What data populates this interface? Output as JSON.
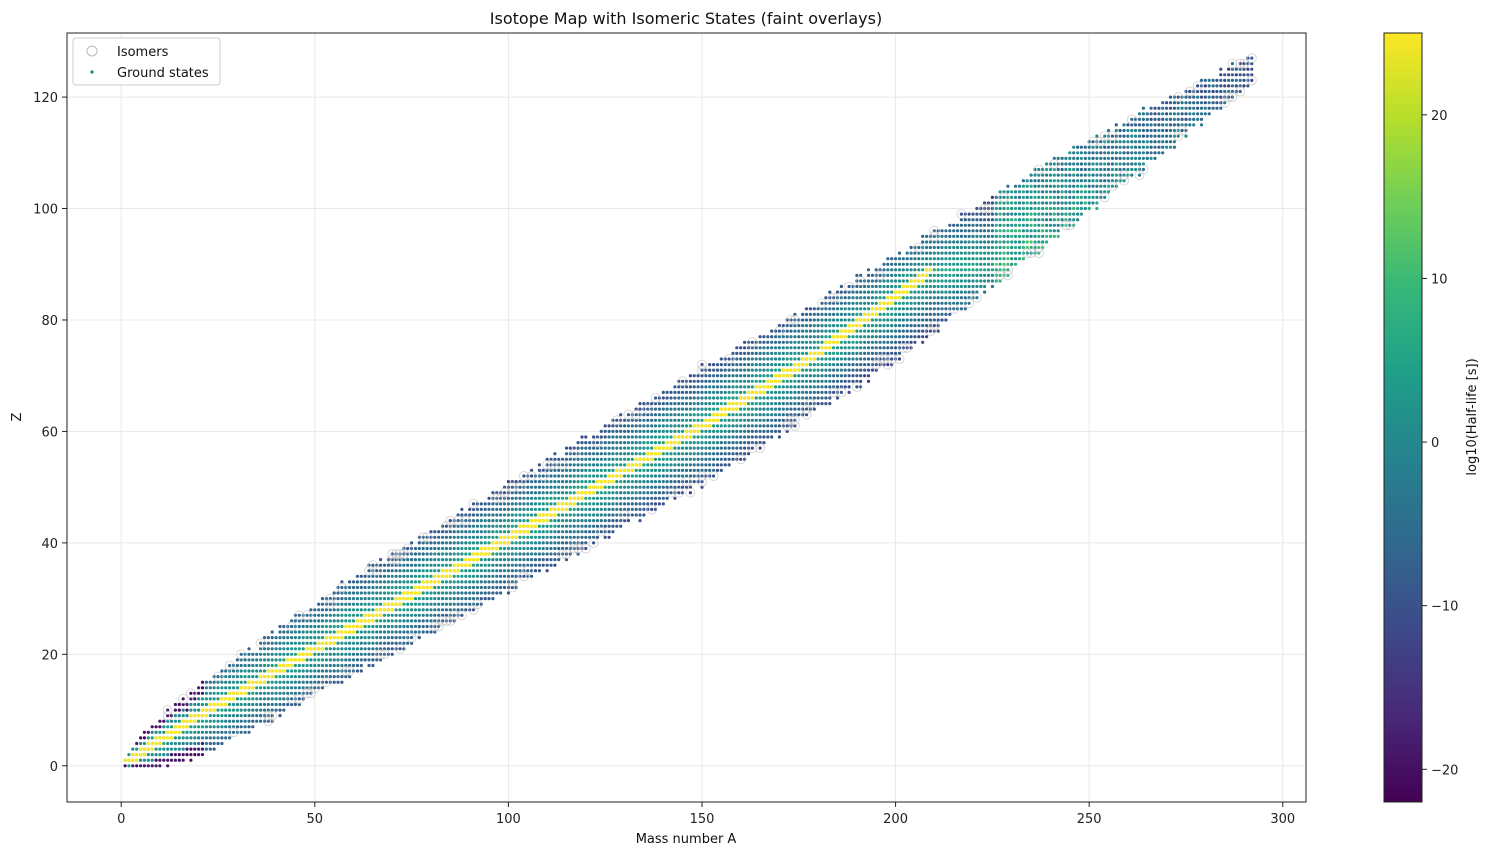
{
  "chart_data": {
    "type": "scatter",
    "title": "Isotope Map with Isomeric States (faint overlays)",
    "xlabel": "Mass number A",
    "ylabel": "Z",
    "xlim": [
      -14,
      306
    ],
    "ylim": [
      -6.5,
      131.5
    ],
    "x_ticks": [
      0,
      50,
      100,
      150,
      200,
      250,
      300
    ],
    "y_ticks": [
      0,
      20,
      40,
      60,
      80,
      100,
      120
    ],
    "grid": true,
    "legend_position": "upper-left",
    "colorbar": {
      "label": "log10(Half-life [s])",
      "min": -22,
      "max": 25,
      "ticks": [
        -20,
        -10,
        0,
        10,
        20
      ],
      "tick_labels": [
        "−20",
        "−10",
        "0",
        "10",
        "20"
      ],
      "colormap": "viridis",
      "colors": [
        "#440154",
        "#482878",
        "#3e4989",
        "#31688e",
        "#26828e",
        "#1f9e89",
        "#35b779",
        "#6ece58",
        "#b5de2b",
        "#fde725"
      ]
    },
    "series": [
      {
        "name": "Isomers",
        "marker": "open-circle",
        "color": "#bbbbbb"
      },
      {
        "name": "Ground states",
        "marker": "dot",
        "color": "#26828e"
      }
    ],
    "band": {
      "description_points_A": [
        1,
        10,
        25,
        50,
        100,
        150,
        200,
        250,
        292
      ],
      "center_Z": [
        1,
        4,
        10,
        21,
        41,
        61,
        82,
        106,
        125
      ],
      "half_width_Z": [
        1,
        4,
        6,
        8,
        9,
        10,
        9,
        6,
        2
      ]
    },
    "stability_line": {
      "A": [
        2,
        20,
        50,
        88,
        120,
        150,
        180,
        209
      ],
      "Z": [
        1,
        9,
        21,
        36,
        49,
        61,
        74,
        89
      ]
    }
  }
}
